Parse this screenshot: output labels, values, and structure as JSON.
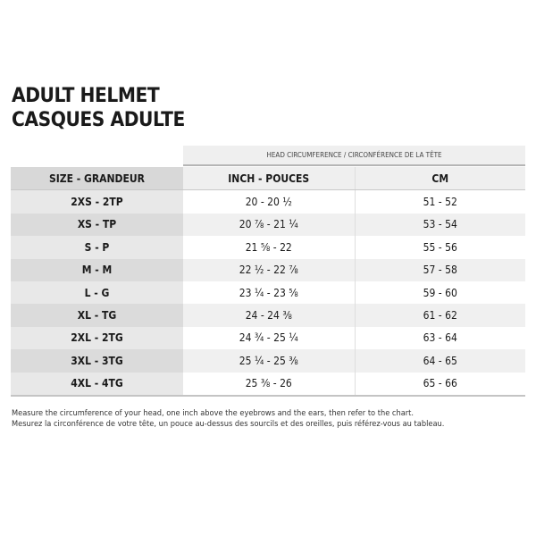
{
  "title_lines": [
    "ADULT HELMET",
    "CASQUES ADULTE"
  ],
  "group_header": "HEAD CIRCUMFERENCE / CIRCONFÉRENCE DE LA TÊTE",
  "columns": [
    "SIZE - GRANDEUR",
    "INCH - POUCES",
    "CM"
  ],
  "rows": [
    [
      "2XS - 2TP",
      "20 - 20 ½",
      "51 - 52"
    ],
    [
      "XS - TP",
      "20 ⅞ - 21 ¼",
      "53 - 54"
    ],
    [
      "S - P",
      "21 ⅝ - 22",
      "55 - 56"
    ],
    [
      "M - M",
      "22 ½ - 22 ⅞",
      "57 - 58"
    ],
    [
      "L - G",
      "23 ¼ - 23 ⅝",
      "59 - 60"
    ],
    [
      "XL - TG",
      "24 - 24 ⅜",
      "61 - 62"
    ],
    [
      "2XL - 2TG",
      "24 ¾ - 25 ¼",
      "63 - 64"
    ],
    [
      "3XL - 3TG",
      "25 ¼ - 25 ⅜",
      "64 - 65"
    ],
    [
      "4XL - 4TG",
      "25 ⅜ - 26",
      "65 - 66"
    ]
  ],
  "notes": [
    "Measure the circumference of your head, one inch above the eyebrows and the ears, then refer to the chart.",
    "Mesurez la circonférence de votre tête, un pouce au-dessus des sourcils et des oreilles, puis référez-vous au tableau."
  ]
}
